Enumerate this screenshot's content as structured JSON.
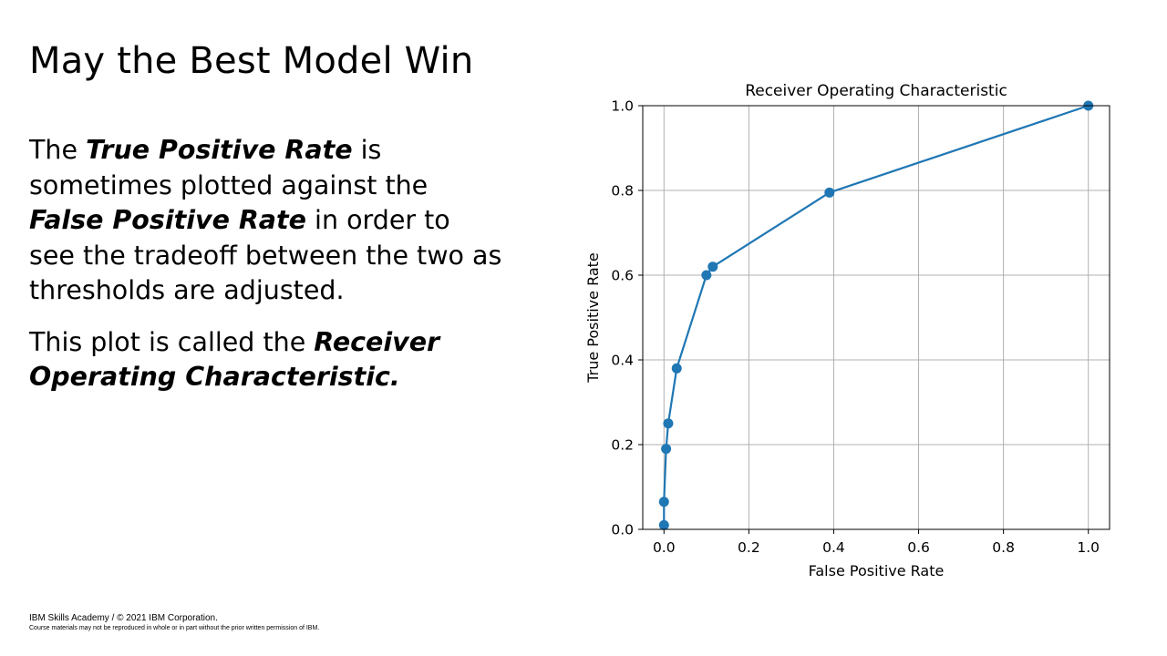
{
  "slide": {
    "title": "May the Best Model Win",
    "para1": {
      "t1": "The ",
      "em1": "True Positive Rate",
      "t2": " is sometimes plotted against the ",
      "em2": "False Positive Rate",
      "t3": " in order to see the tradeoff between the two as thresholds are adjusted."
    },
    "para2": {
      "t1": "This plot is called the ",
      "em1": "Receiver Operating Characteristic."
    }
  },
  "footer": {
    "line1": "IBM Skills Academy / © 2021 IBM Corporation.",
    "line2": "Course  materials  may  not  be  reproduced   in whole  or  in part  without  the  prior  written  permission   of IBM."
  },
  "chart_data": {
    "type": "line",
    "title": "Receiver Operating Characteristic",
    "xlabel": "False Positive Rate",
    "ylabel": "True Positive Rate",
    "xlim": [
      -0.05,
      1.05
    ],
    "ylim": [
      0.0,
      1.0
    ],
    "xticks": [
      "0.0",
      "0.2",
      "0.4",
      "0.6",
      "0.8",
      "1.0"
    ],
    "yticks": [
      "0.0",
      "0.2",
      "0.4",
      "0.6",
      "0.8",
      "1.0"
    ],
    "grid": true,
    "color": "#1f77b4",
    "markers": true,
    "series": [
      {
        "x": [
          0.0,
          0.0,
          0.005,
          0.01,
          0.03,
          0.1,
          0.115,
          0.39,
          1.0
        ],
        "y": [
          0.01,
          0.065,
          0.19,
          0.25,
          0.38,
          0.6,
          0.62,
          0.795,
          1.0
        ]
      }
    ]
  }
}
